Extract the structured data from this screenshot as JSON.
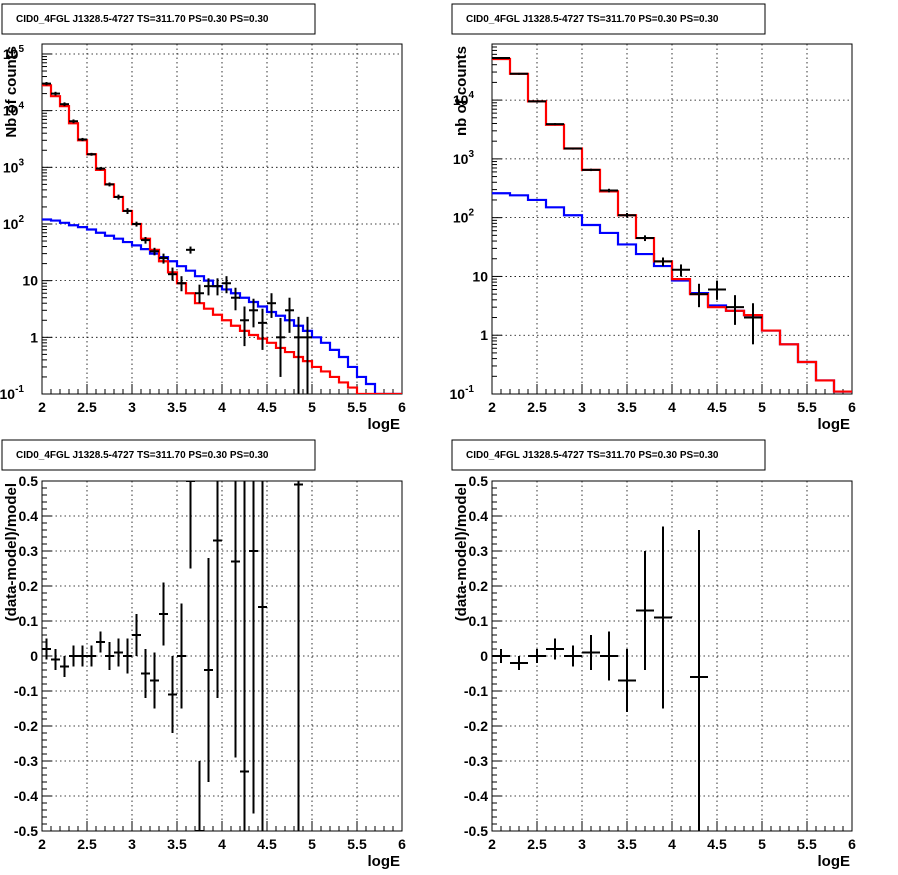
{
  "panels_title": "CID0_4FGL J1328.5-4727 TS=311.70 PS=0.30 PS=0.30",
  "chart_data": [
    {
      "type": "line",
      "title": "CID0_4FGL J1328.5-4727 TS=311.70 PS=0.30 PS=0.30",
      "xlabel": "logE",
      "ylabel": "Nb of counts",
      "xlim": [
        2,
        6
      ],
      "ylim": [
        0.1,
        150000
      ],
      "yscale": "log",
      "grid": true,
      "x_ticks": [
        "2",
        "2.5",
        "3",
        "3.5",
        "4",
        "4.5",
        "5",
        "5.5",
        "6"
      ],
      "y_ticks": [
        "10^-1",
        "1",
        "10",
        "10^2",
        "10^3",
        "10^4",
        "10^5"
      ],
      "bin_edges": [
        2.0,
        2.1,
        2.2,
        2.3,
        2.4,
        2.5,
        2.6,
        2.7,
        2.8,
        2.9,
        3.0,
        3.1,
        3.2,
        3.3,
        3.4,
        3.5,
        3.6,
        3.7,
        3.8,
        3.9,
        4.0,
        4.1,
        4.2,
        4.3,
        4.4,
        4.5,
        4.6,
        4.7,
        4.8,
        4.9,
        5.0,
        5.1,
        5.2,
        5.3,
        5.4,
        5.5,
        5.6,
        5.7,
        5.8,
        5.9,
        6.0
      ],
      "series": [
        {
          "color": "#ff0000",
          "values": [
            28000,
            18000,
            12000,
            6000,
            3000,
            1700,
            900,
            500,
            300,
            170,
            100,
            55,
            35,
            22,
            14,
            9,
            6,
            4,
            3.2,
            2.5,
            2.0,
            1.6,
            1.3,
            1.1,
            0.95,
            0.8,
            0.65,
            0.55,
            0.45,
            0.38,
            0.3,
            0.25,
            0.2,
            0.16,
            0.13,
            0.1,
            0.1,
            0.1,
            0.1,
            0.1
          ]
        },
        {
          "color": "#0000ff",
          "values": [
            120,
            115,
            105,
            95,
            88,
            80,
            70,
            62,
            55,
            48,
            42,
            36,
            30,
            26,
            22,
            18,
            15,
            12,
            10,
            8,
            7,
            6,
            5,
            4.2,
            3.5,
            2.8,
            2.4,
            2.0,
            1.6,
            1.3,
            1.0,
            0.8,
            0.6,
            0.45,
            0.3,
            0.2,
            0.15,
            0.1,
            0.1,
            0.1
          ]
        }
      ],
      "points": [
        {
          "x": 2.05,
          "y": 30000,
          "ylo": 28000,
          "yhi": 32000
        },
        {
          "x": 2.15,
          "y": 20000,
          "ylo": 18500,
          "yhi": 21500
        },
        {
          "x": 2.25,
          "y": 13000,
          "ylo": 12000,
          "yhi": 14000
        },
        {
          "x": 2.35,
          "y": 6500,
          "ylo": 6000,
          "yhi": 7000
        },
        {
          "x": 2.45,
          "y": 3100,
          "ylo": 2900,
          "yhi": 3300
        },
        {
          "x": 2.55,
          "y": 1700,
          "ylo": 1600,
          "yhi": 1800
        },
        {
          "x": 2.65,
          "y": 950,
          "ylo": 890,
          "yhi": 1010
        },
        {
          "x": 2.75,
          "y": 500,
          "ylo": 460,
          "yhi": 540
        },
        {
          "x": 2.85,
          "y": 300,
          "ylo": 270,
          "yhi": 330
        },
        {
          "x": 2.95,
          "y": 170,
          "ylo": 150,
          "yhi": 190
        },
        {
          "x": 3.05,
          "y": 100,
          "ylo": 90,
          "yhi": 110
        },
        {
          "x": 3.15,
          "y": 52,
          "ylo": 45,
          "yhi": 59
        },
        {
          "x": 3.25,
          "y": 33,
          "ylo": 28,
          "yhi": 38
        },
        {
          "x": 3.35,
          "y": 25,
          "ylo": 20,
          "yhi": 30
        },
        {
          "x": 3.45,
          "y": 13,
          "ylo": 10,
          "yhi": 17
        },
        {
          "x": 3.55,
          "y": 9,
          "ylo": 6.5,
          "yhi": 12
        },
        {
          "x": 3.65,
          "y": 35,
          "ylo": 30,
          "yhi": 40
        },
        {
          "x": 3.75,
          "y": 6,
          "ylo": 4,
          "yhi": 8.5
        },
        {
          "x": 3.85,
          "y": 8,
          "ylo": 5.5,
          "yhi": 11
        },
        {
          "x": 3.95,
          "y": 8,
          "ylo": 5.5,
          "yhi": 11
        },
        {
          "x": 4.05,
          "y": 9,
          "ylo": 6,
          "yhi": 12
        },
        {
          "x": 4.15,
          "y": 5,
          "ylo": 3,
          "yhi": 7.5
        },
        {
          "x": 4.25,
          "y": 2,
          "ylo": 0.7,
          "yhi": 3.5
        },
        {
          "x": 4.35,
          "y": 3,
          "ylo": 1.5,
          "yhi": 4.8
        },
        {
          "x": 4.45,
          "y": 1.8,
          "ylo": 0.6,
          "yhi": 3.2
        },
        {
          "x": 4.55,
          "y": 4,
          "ylo": 2.2,
          "yhi": 6
        },
        {
          "x": 4.65,
          "y": 1,
          "ylo": 0.2,
          "yhi": 2.2
        },
        {
          "x": 4.75,
          "y": 3,
          "ylo": 1.2,
          "yhi": 5
        },
        {
          "x": 4.85,
          "y": 1,
          "ylo": 0.1,
          "yhi": 2.3
        },
        {
          "x": 4.95,
          "y": 1,
          "ylo": 0.1,
          "yhi": 2.3
        }
      ]
    },
    {
      "type": "line",
      "title": "CID0_4FGL J1328.5-4727 TS=311.70 PS=0.30 PS=0.30",
      "xlabel": "logE",
      "ylabel": "nb of counts",
      "xlim": [
        2,
        6
      ],
      "ylim": [
        0.1,
        90000
      ],
      "yscale": "log",
      "grid": true,
      "x_ticks": [
        "2",
        "2.5",
        "3",
        "3.5",
        "4",
        "4.5",
        "5",
        "5.5",
        "6"
      ],
      "y_ticks": [
        "10^-1",
        "1",
        "10",
        "10^2",
        "10^3",
        "10^4"
      ],
      "bin_edges": [
        2.0,
        2.2,
        2.4,
        2.6,
        2.8,
        3.0,
        3.2,
        3.4,
        3.6,
        3.8,
        4.0,
        4.2,
        4.4,
        4.6,
        4.8,
        5.0,
        5.2,
        5.4,
        5.6,
        5.8,
        6.0
      ],
      "series": [
        {
          "color": "#ff0000",
          "values": [
            50000,
            28000,
            9500,
            3800,
            1500,
            650,
            280,
            110,
            45,
            18,
            9,
            5,
            3,
            2.6,
            2.2,
            1.2,
            0.7,
            0.35,
            0.17,
            0.11
          ]
        },
        {
          "color": "#0000ff",
          "values": [
            260,
            240,
            200,
            150,
            110,
            75,
            55,
            35,
            24,
            15,
            8.5,
            5.2,
            3.2,
            2.6,
            2.2,
            1.2,
            0.7,
            0.35,
            0.17,
            0.11
          ]
        }
      ],
      "points": [
        {
          "x": 2.1,
          "y": 52000,
          "ylo": 50000,
          "yhi": 54000
        },
        {
          "x": 2.3,
          "y": 28000,
          "ylo": 27000,
          "yhi": 29000
        },
        {
          "x": 2.5,
          "y": 9500,
          "ylo": 9200,
          "yhi": 9800
        },
        {
          "x": 2.7,
          "y": 3900,
          "ylo": 3750,
          "yhi": 4050
        },
        {
          "x": 2.9,
          "y": 1500,
          "ylo": 1440,
          "yhi": 1560
        },
        {
          "x": 3.1,
          "y": 650,
          "ylo": 620,
          "yhi": 680
        },
        {
          "x": 3.3,
          "y": 290,
          "ylo": 270,
          "yhi": 310
        },
        {
          "x": 3.5,
          "y": 110,
          "ylo": 100,
          "yhi": 120
        },
        {
          "x": 3.7,
          "y": 45,
          "ylo": 40,
          "yhi": 50
        },
        {
          "x": 3.9,
          "y": 18,
          "ylo": 15,
          "yhi": 21
        },
        {
          "x": 4.1,
          "y": 13,
          "ylo": 10,
          "yhi": 16
        },
        {
          "x": 4.3,
          "y": 5,
          "ylo": 3,
          "yhi": 7.5
        },
        {
          "x": 4.5,
          "y": 6,
          "ylo": 4,
          "yhi": 8.5
        },
        {
          "x": 4.7,
          "y": 3,
          "ylo": 1.5,
          "yhi": 4.8
        },
        {
          "x": 4.9,
          "y": 2,
          "ylo": 0.7,
          "yhi": 3.5
        }
      ]
    },
    {
      "type": "scatter",
      "title": "CID0_4FGL J1328.5-4727 TS=311.70 PS=0.30 PS=0.30",
      "xlabel": "logE",
      "ylabel": "(data-model)/model",
      "xlim": [
        2,
        6
      ],
      "ylim": [
        -0.5,
        0.5
      ],
      "grid": true,
      "x_ticks": [
        "2",
        "2.5",
        "3",
        "3.5",
        "4",
        "4.5",
        "5",
        "5.5",
        "6"
      ],
      "y_ticks": [
        "-0.5",
        "-0.4",
        "-0.3",
        "-0.2",
        "-0.1",
        "0",
        "0.1",
        "0.2",
        "0.3",
        "0.4",
        "0.5"
      ],
      "points": [
        {
          "x": 2.05,
          "y": 0.02,
          "ylo": -0.01,
          "yhi": 0.05
        },
        {
          "x": 2.15,
          "y": -0.01,
          "ylo": -0.04,
          "yhi": 0.02
        },
        {
          "x": 2.25,
          "y": -0.03,
          "ylo": -0.06,
          "yhi": 0.0
        },
        {
          "x": 2.35,
          "y": 0.0,
          "ylo": -0.03,
          "yhi": 0.03
        },
        {
          "x": 2.45,
          "y": 0.0,
          "ylo": -0.03,
          "yhi": 0.03
        },
        {
          "x": 2.55,
          "y": 0.0,
          "ylo": -0.03,
          "yhi": 0.03
        },
        {
          "x": 2.65,
          "y": 0.04,
          "ylo": 0.01,
          "yhi": 0.07
        },
        {
          "x": 2.75,
          "y": 0.0,
          "ylo": -0.04,
          "yhi": 0.04
        },
        {
          "x": 2.85,
          "y": 0.01,
          "ylo": -0.03,
          "yhi": 0.05
        },
        {
          "x": 2.95,
          "y": 0.0,
          "ylo": -0.05,
          "yhi": 0.05
        },
        {
          "x": 3.05,
          "y": 0.06,
          "ylo": 0.0,
          "yhi": 0.12
        },
        {
          "x": 3.15,
          "y": -0.05,
          "ylo": -0.12,
          "yhi": 0.02
        },
        {
          "x": 3.25,
          "y": -0.07,
          "ylo": -0.15,
          "yhi": 0.01
        },
        {
          "x": 3.35,
          "y": 0.12,
          "ylo": 0.03,
          "yhi": 0.21
        },
        {
          "x": 3.45,
          "y": -0.11,
          "ylo": -0.22,
          "yhi": 0.0
        },
        {
          "x": 3.55,
          "y": -0.0,
          "ylo": -0.15,
          "yhi": 0.15
        },
        {
          "x": 3.65,
          "y": 0.5,
          "ylo": 0.25,
          "yhi": 0.5
        },
        {
          "x": 3.75,
          "y": -0.5,
          "ylo": -0.5,
          "yhi": -0.3
        },
        {
          "x": 3.85,
          "y": -0.04,
          "ylo": -0.36,
          "yhi": 0.28
        },
        {
          "x": 3.95,
          "y": 0.33,
          "ylo": -0.12,
          "yhi": 0.5
        },
        {
          "x": 4.15,
          "y": 0.27,
          "ylo": -0.29,
          "yhi": 0.5
        },
        {
          "x": 4.25,
          "y": -0.33,
          "ylo": -0.5,
          "yhi": 0.5
        },
        {
          "x": 4.35,
          "y": 0.3,
          "ylo": -0.45,
          "yhi": 0.5
        },
        {
          "x": 4.45,
          "y": 0.14,
          "ylo": -0.5,
          "yhi": 0.5
        },
        {
          "x": 4.85,
          "y": 0.49,
          "ylo": -0.5,
          "yhi": 0.5
        }
      ]
    },
    {
      "type": "scatter",
      "title": "CID0_4FGL J1328.5-4727 TS=311.70 PS=0.30 PS=0.30",
      "xlabel": "logE",
      "ylabel": "(data-model)/model",
      "xlim": [
        2,
        6
      ],
      "ylim": [
        -0.5,
        0.5
      ],
      "grid": true,
      "x_ticks": [
        "2",
        "2.5",
        "3",
        "3.5",
        "4",
        "4.5",
        "5",
        "5.5",
        "6"
      ],
      "y_ticks": [
        "-0.5",
        "-0.4",
        "-0.3",
        "-0.2",
        "-0.1",
        "0",
        "0.1",
        "0.2",
        "0.3",
        "0.4",
        "0.5"
      ],
      "points": [
        {
          "x": 2.1,
          "y": 0.0,
          "ylo": -0.02,
          "yhi": 0.02
        },
        {
          "x": 2.3,
          "y": -0.02,
          "ylo": -0.04,
          "yhi": 0.0
        },
        {
          "x": 2.5,
          "y": 0.0,
          "ylo": -0.02,
          "yhi": 0.02
        },
        {
          "x": 2.7,
          "y": 0.02,
          "ylo": -0.01,
          "yhi": 0.05
        },
        {
          "x": 2.9,
          "y": 0.0,
          "ylo": -0.03,
          "yhi": 0.03
        },
        {
          "x": 3.1,
          "y": 0.01,
          "ylo": -0.04,
          "yhi": 0.06
        },
        {
          "x": 3.3,
          "y": 0.0,
          "ylo": -0.07,
          "yhi": 0.07
        },
        {
          "x": 3.5,
          "y": -0.07,
          "ylo": -0.16,
          "yhi": 0.02
        },
        {
          "x": 3.7,
          "y": 0.13,
          "ylo": -0.04,
          "yhi": 0.3
        },
        {
          "x": 3.9,
          "y": 0.11,
          "ylo": -0.15,
          "yhi": 0.37
        },
        {
          "x": 4.3,
          "y": -0.06,
          "ylo": -0.5,
          "yhi": 0.36
        }
      ]
    }
  ]
}
